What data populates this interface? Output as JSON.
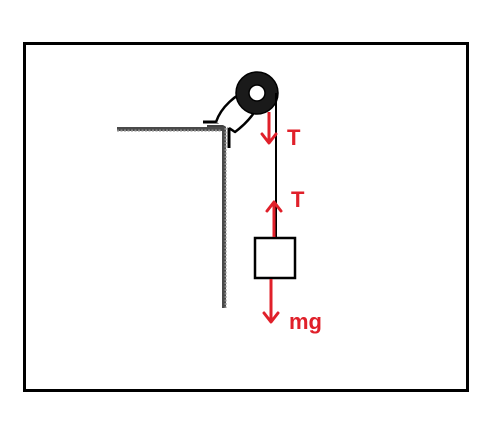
{
  "diagram": {
    "labels": {
      "tension_top": "T",
      "tension_block": "T",
      "weight": "mg"
    },
    "colors": {
      "force": "#e0202a",
      "line": "#000000",
      "pulley": "#1a1a1a",
      "table": "#555555"
    },
    "icons": {
      "pulley": "pulley-icon",
      "clamp": "clamp-icon",
      "block": "mass-block"
    }
  }
}
